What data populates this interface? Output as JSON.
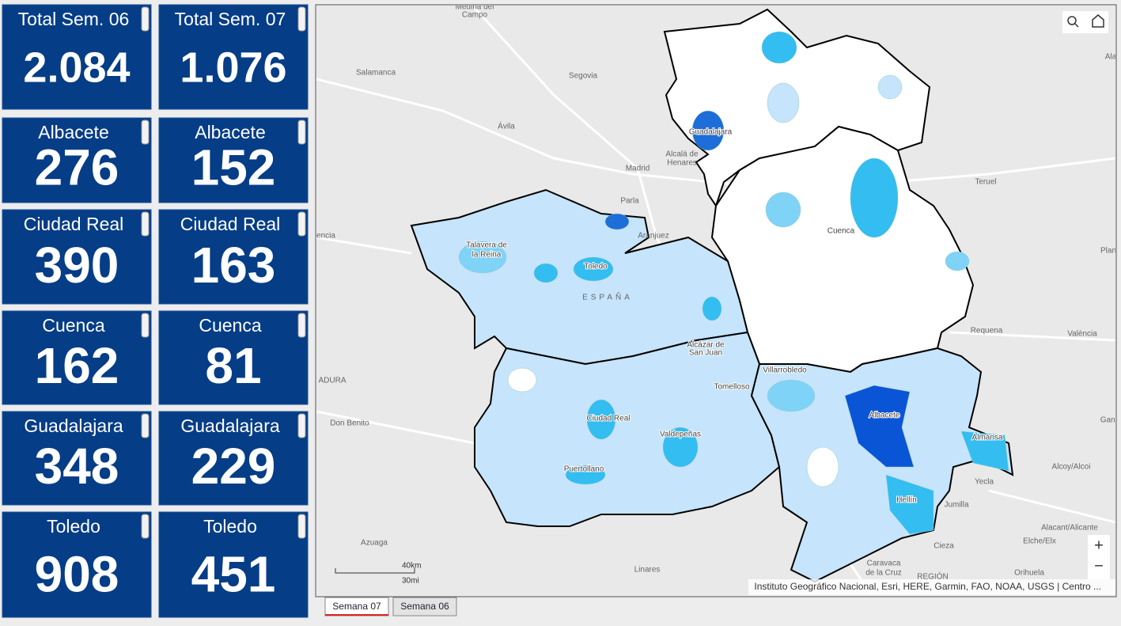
{
  "cards": [
    {
      "title": "Total Sem. 06",
      "value": "2.084"
    },
    {
      "title": "Total Sem. 07",
      "value": "1.076"
    },
    {
      "title": "Albacete",
      "value": "276"
    },
    {
      "title": "Albacete",
      "value": "152"
    },
    {
      "title": "Ciudad Real",
      "value": "390"
    },
    {
      "title": "Ciudad Real",
      "value": "163"
    },
    {
      "title": "Cuenca",
      "value": "162"
    },
    {
      "title": "Cuenca",
      "value": "81"
    },
    {
      "title": "Guadalajara",
      "value": "348"
    },
    {
      "title": "Guadalajara",
      "value": "229"
    },
    {
      "title": "Toledo",
      "value": "908"
    },
    {
      "title": "Toledo",
      "value": "451"
    }
  ],
  "map": {
    "labels": [
      "Medina del",
      "Campo",
      "Salamanca",
      "Segovia",
      "Ávila",
      "Madrid",
      "Alcalá de",
      "Henares",
      "Parla",
      "Aranjuez",
      "Talavera de",
      "la Reina",
      "Toledo",
      "ESPAÑA",
      "Guadalajara",
      "Cuenca",
      "Teruel",
      "Requena",
      "València",
      "Alcázar de",
      "San Juan",
      "Villarrobledo",
      "Tomelloso",
      "Albacete",
      "Almansa",
      "Ciudad Real",
      "Valdepeñas",
      "Puertollano",
      "Don Benito",
      "Yecla",
      "Jumilla",
      "Hellín",
      "Alcoy/Alcoi",
      "Alacant/Alicante",
      "Elche/Elx",
      "Cieza",
      "Azuaga",
      "Linares",
      "Caravaca",
      "de la Cruz",
      "Orihuela",
      "REGIÓN",
      "ADURA",
      "encia",
      "Ala",
      "Gand",
      "Plan"
    ],
    "scale": {
      "km": "40km",
      "mi": "30mi"
    },
    "attribution": "Instituto Geográfico Nacional, Esri, HERE, Garmin, FAO, NOAA, USGS | Centro ...",
    "zoom_in": "+",
    "zoom_out": "−"
  },
  "tabs": [
    "Semana 07",
    "Semana 06"
  ]
}
